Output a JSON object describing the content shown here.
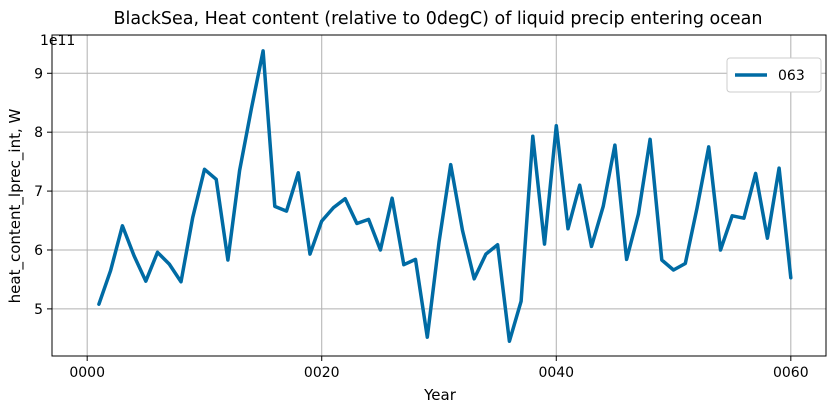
{
  "chart_data": {
    "type": "line",
    "title": "BlackSea, Heat content (relative to 0degC) of liquid precip entering ocean",
    "xlabel": "Year",
    "ylabel": "heat_content_lprec_int, W",
    "y_offset_label": "1e11",
    "xlim": [
      -3,
      63
    ],
    "ylim": [
      4.2,
      9.65
    ],
    "x_ticks": [
      0,
      20,
      40,
      60
    ],
    "x_tick_labels": [
      "0000",
      "0020",
      "0040",
      "0060"
    ],
    "y_ticks": [
      5,
      6,
      7,
      8,
      9
    ],
    "y_tick_labels": [
      "5",
      "6",
      "7",
      "8",
      "9"
    ],
    "grid": true,
    "legend_position": "top-right",
    "series": [
      {
        "name": "063",
        "color": "#006ba4",
        "x": [
          1,
          2,
          3,
          4,
          5,
          6,
          7,
          8,
          9,
          10,
          11,
          12,
          13,
          14,
          15,
          16,
          17,
          18,
          19,
          20,
          21,
          22,
          23,
          24,
          25,
          26,
          27,
          28,
          29,
          30,
          31,
          32,
          33,
          34,
          35,
          36,
          37,
          38,
          39,
          40,
          41,
          42,
          43,
          44,
          45,
          46,
          47,
          48,
          49,
          50,
          51,
          52,
          53,
          54,
          55,
          56,
          57,
          58,
          59,
          60
        ],
        "values": [
          5.08,
          5.65,
          6.41,
          5.9,
          5.47,
          5.96,
          5.76,
          5.46,
          6.55,
          7.37,
          7.2,
          5.83,
          7.35,
          8.4,
          9.38,
          6.74,
          6.66,
          7.31,
          5.93,
          6.49,
          6.72,
          6.87,
          6.45,
          6.52,
          6.0,
          6.88,
          5.75,
          5.84,
          4.52,
          6.13,
          7.45,
          6.33,
          5.51,
          5.93,
          6.09,
          4.45,
          5.13,
          7.93,
          6.1,
          8.11,
          6.36,
          7.1,
          6.06,
          6.74,
          7.78,
          5.84,
          6.61,
          7.88,
          5.83,
          5.66,
          5.77,
          6.71,
          7.75,
          6.0,
          6.58,
          6.54,
          7.3,
          6.2,
          7.39,
          5.53
        ]
      }
    ]
  }
}
